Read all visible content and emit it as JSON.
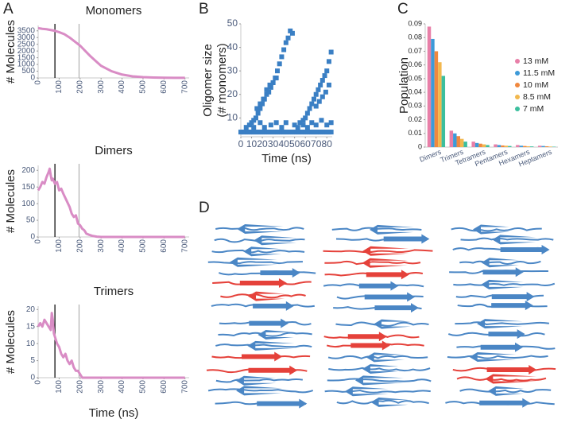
{
  "panels": [
    "A",
    "B",
    "C",
    "D"
  ],
  "chart_data": [
    {
      "type": "line",
      "title": "Monomers",
      "ylabel": "# Molecules",
      "x": [
        0,
        20,
        40,
        60,
        80,
        100,
        125,
        150,
        175,
        200,
        225,
        250,
        275,
        300,
        350,
        400,
        450,
        500,
        550,
        600,
        650,
        700
      ],
      "values": [
        3700,
        3650,
        3620,
        3560,
        3500,
        3400,
        3250,
        3000,
        2700,
        2400,
        2000,
        1600,
        1250,
        900,
        500,
        250,
        120,
        60,
        30,
        15,
        10,
        8
      ],
      "color": "#d98cc5",
      "xlim": [
        0,
        720
      ],
      "xticks": [
        0,
        100,
        200,
        300,
        400,
        500,
        600,
        700
      ],
      "ylim": [
        0,
        3900
      ],
      "yticks": [
        0,
        500,
        1000,
        1500,
        2000,
        2500,
        3000,
        3500
      ],
      "vlines": [
        {
          "x": 80,
          "color": "#000000"
        },
        {
          "x": 195,
          "color": "#b0b0b0"
        }
      ]
    },
    {
      "type": "line",
      "title": "Dimers",
      "ylabel": "# Molecules",
      "x": [
        0,
        10,
        20,
        30,
        40,
        50,
        55,
        60,
        65,
        70,
        80,
        90,
        100,
        110,
        120,
        135,
        150,
        160,
        170,
        180,
        190,
        200,
        210,
        220,
        230,
        245,
        260,
        280,
        300,
        400,
        500,
        600,
        700
      ],
      "values": [
        140,
        150,
        165,
        160,
        180,
        195,
        205,
        185,
        170,
        175,
        160,
        165,
        140,
        145,
        130,
        110,
        90,
        70,
        60,
        65,
        40,
        35,
        25,
        20,
        10,
        6,
        3,
        1,
        0,
        0,
        0,
        0,
        0
      ],
      "color": "#d98cc5",
      "xlim": [
        0,
        720
      ],
      "xticks": [
        0,
        100,
        200,
        300,
        400,
        500,
        600,
        700
      ],
      "ylim": [
        0,
        215
      ],
      "yticks": [
        0,
        50,
        100,
        150,
        200
      ],
      "vlines": [
        {
          "x": 80,
          "color": "#000000"
        },
        {
          "x": 195,
          "color": "#b0b0b0"
        }
      ]
    },
    {
      "type": "line",
      "title": "Trimers",
      "ylabel": "# Molecules",
      "xlabel": "Time (ns)",
      "x": [
        0,
        10,
        20,
        30,
        40,
        50,
        60,
        65,
        70,
        75,
        80,
        90,
        100,
        110,
        120,
        130,
        140,
        150,
        160,
        170,
        180,
        190,
        200,
        210,
        300,
        400,
        500,
        600,
        700
      ],
      "values": [
        15,
        16,
        15,
        17,
        16,
        15,
        14,
        19,
        17,
        13,
        12,
        10,
        9,
        7,
        6,
        7,
        5,
        4,
        5,
        3,
        2,
        2,
        1,
        0,
        0,
        0,
        0,
        0,
        0
      ],
      "color": "#d98cc5",
      "xlim": [
        0,
        720
      ],
      "xticks": [
        0,
        100,
        200,
        300,
        400,
        500,
        600,
        700
      ],
      "ylim": [
        0,
        21
      ],
      "yticks": [
        0,
        5,
        10,
        15,
        20
      ],
      "vlines": [
        {
          "x": 80,
          "color": "#000000"
        },
        {
          "x": 195,
          "color": "#b0b0b0"
        }
      ]
    },
    {
      "type": "scatter",
      "xlabel": "Time (ns)",
      "ylabel": [
        "Oligomer size",
        "(# monomers)"
      ],
      "color": "#3a7fc4",
      "x": [
        0,
        2,
        4,
        6,
        8,
        10,
        12,
        14,
        16,
        18,
        20,
        22,
        24,
        26,
        28,
        30,
        32,
        34,
        36,
        38,
        40,
        42,
        44,
        46,
        48,
        50,
        52,
        54,
        56,
        58,
        60,
        62,
        64,
        66,
        68,
        70,
        72,
        74,
        76,
        78,
        80,
        82,
        84,
        10,
        12,
        14,
        16,
        18,
        20,
        22,
        24,
        26,
        28,
        30,
        32,
        34,
        36,
        38,
        40,
        42,
        44,
        46,
        48,
        15,
        18,
        21,
        24,
        27,
        30,
        33,
        55,
        58,
        60,
        62,
        64,
        66,
        68,
        70,
        72,
        74,
        76,
        78,
        80,
        82,
        84,
        70,
        73,
        76,
        79,
        82,
        5,
        8,
        12,
        18,
        22,
        28,
        33,
        38,
        42,
        50,
        53,
        58,
        62,
        66,
        70,
        75,
        80,
        84
      ],
      "y": [
        4,
        4,
        4,
        4,
        4,
        4,
        4,
        4,
        4,
        4,
        4,
        4,
        4,
        4,
        4,
        4,
        4,
        4,
        4,
        4,
        4,
        4,
        4,
        4,
        4,
        4,
        4,
        4,
        4,
        4,
        4,
        4,
        4,
        4,
        4,
        4,
        4,
        4,
        4,
        4,
        4,
        4,
        4,
        8,
        9,
        10,
        12,
        14,
        16,
        18,
        20,
        21,
        23,
        25,
        27,
        30,
        33,
        36,
        39,
        42,
        44,
        47,
        46,
        14,
        16,
        18,
        22,
        24,
        25,
        27,
        8,
        9,
        10,
        12,
        14,
        16,
        18,
        20,
        22,
        24,
        26,
        28,
        30,
        34,
        38,
        15,
        17,
        19,
        21,
        24,
        6,
        7,
        6,
        8,
        6,
        7,
        8,
        6,
        8,
        7,
        6,
        7,
        6,
        8,
        7,
        9,
        7,
        8
      ],
      "xlim": [
        0,
        85
      ],
      "xticks": [
        0,
        10,
        20,
        30,
        40,
        50,
        60,
        70,
        80
      ],
      "ylim": [
        2,
        50
      ],
      "yticks": [
        10,
        20,
        30,
        40,
        50
      ]
    },
    {
      "type": "bar",
      "ylabel": "Population",
      "categories": [
        "Dimers",
        "Trimers",
        "Tetramers",
        "Pentamers",
        "Hexamers",
        "Heptamers"
      ],
      "series": [
        {
          "name": "13 mM",
          "color": "#e87fa8",
          "values": [
            0.088,
            0.012,
            0.004,
            0.002,
            0.0015,
            0.001
          ]
        },
        {
          "name": "11.5 mM",
          "color": "#3d9ad8",
          "values": [
            0.079,
            0.01,
            0.003,
            0.0015,
            0.001,
            0.0008
          ]
        },
        {
          "name": "10 mM",
          "color": "#f0883e",
          "values": [
            0.07,
            0.008,
            0.0025,
            0.0012,
            0.0008,
            0.0006
          ]
        },
        {
          "name": "8.5 mM",
          "color": "#f2b84e",
          "values": [
            0.062,
            0.006,
            0.002,
            0.001,
            0.0006,
            0.0004
          ]
        },
        {
          "name": "7 mM",
          "color": "#3cbf9e",
          "values": [
            0.052,
            0.004,
            0.0015,
            0.0008,
            0.0005,
            0.0003
          ]
        }
      ],
      "ylim": [
        0,
        0.09
      ],
      "yticks": [
        0,
        0.01,
        0.02,
        0.03,
        0.04,
        0.05,
        0.06,
        0.07,
        0.08,
        0.09
      ]
    }
  ]
}
